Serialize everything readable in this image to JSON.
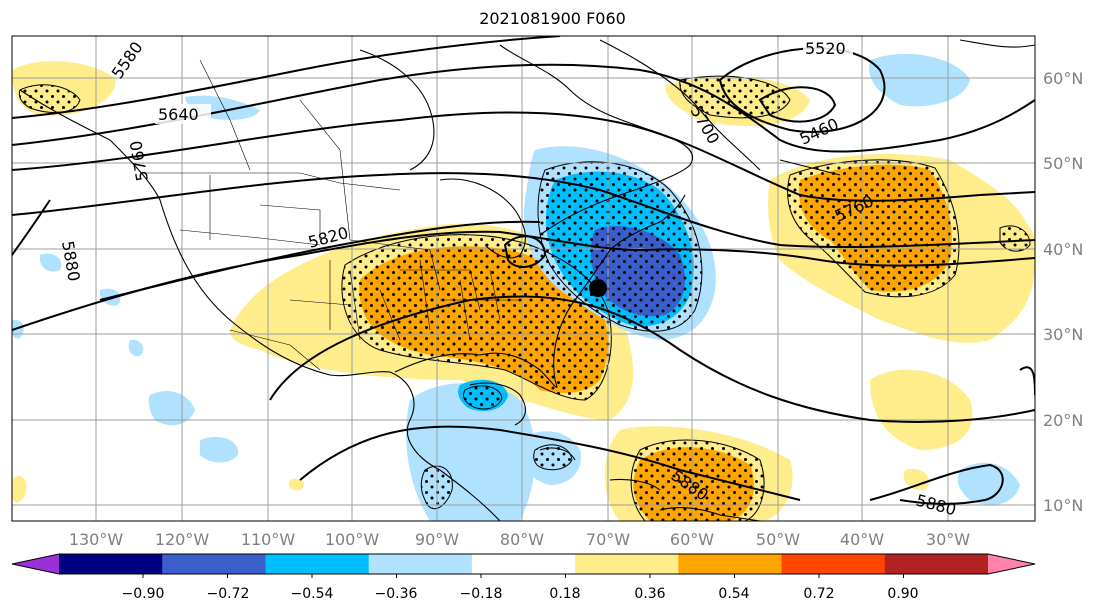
{
  "title": "2021081900 F060",
  "lon_labels": [
    "130°W",
    "120°W",
    "110°W",
    "100°W",
    "90°W",
    "80°W",
    "70°W",
    "60°W",
    "50°W",
    "40°W",
    "30°W"
  ],
  "lat_labels": [
    "60°N",
    "50°N",
    "40°N",
    "30°N",
    "20°N",
    "10°N"
  ],
  "contour_labels": [
    "5520",
    "5580",
    "5640",
    "5460",
    "5760",
    "5820",
    "5880",
    "5880",
    "5880",
    "5700",
    "5760"
  ],
  "colorbar": {
    "tick_labels": [
      "−0.90",
      "−0.72",
      "−0.54",
      "−0.36",
      "−0.18",
      "0.18",
      "0.36",
      "0.54",
      "0.72",
      "0.90"
    ],
    "colors": [
      "#9b30d9",
      "#000080",
      "#3a5fcd",
      "#00bfff",
      "#b0e2ff",
      "#ffffff",
      "#ffec8b",
      "#ffa500",
      "#ff4500",
      "#b22222",
      "#ff82ab"
    ]
  },
  "marker": {
    "label": "point",
    "color": "#000000"
  }
}
